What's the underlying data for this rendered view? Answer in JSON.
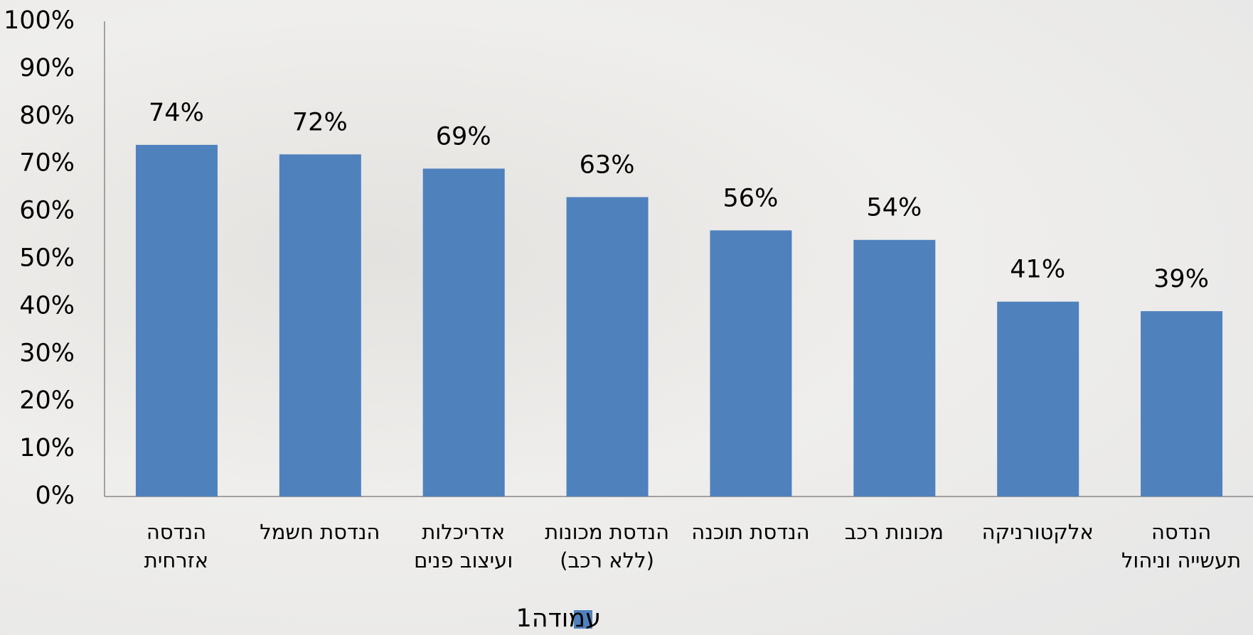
{
  "chart_data": {
    "type": "bar",
    "categories": [
      "הנדסה\nאזרחית",
      "הנדסת חשמל",
      "אדריכלות\nועיצוב פנים",
      "הנדסת מכונות\n(ללא רכב)",
      "הנדסת תוכנה",
      "מכונות רכב",
      "אלקטורניקה",
      "הנדסה\nתעשייה וניהול"
    ],
    "series": [
      {
        "name": "עמודה1",
        "color": "#4f81bd",
        "values": [
          74,
          72,
          69,
          63,
          56,
          54,
          41,
          39
        ],
        "value_labels": [
          "74%",
          "72%",
          "69%",
          "63%",
          "56%",
          "54%",
          "41%",
          "39%"
        ]
      }
    ],
    "ylim": [
      0,
      100
    ],
    "yticks": [
      {
        "value": 0,
        "label": "0%"
      },
      {
        "value": 10,
        "label": "10%"
      },
      {
        "value": 20,
        "label": "20%"
      },
      {
        "value": 30,
        "label": "30%"
      },
      {
        "value": 40,
        "label": "40%"
      },
      {
        "value": 50,
        "label": "50%"
      },
      {
        "value": 60,
        "label": "60%"
      },
      {
        "value": 70,
        "label": "70%"
      },
      {
        "value": 80,
        "label": "80%"
      },
      {
        "value": 90,
        "label": "90%"
      },
      {
        "value": 100,
        "label": "100%"
      }
    ],
    "grid": false,
    "legend": "bottom"
  }
}
